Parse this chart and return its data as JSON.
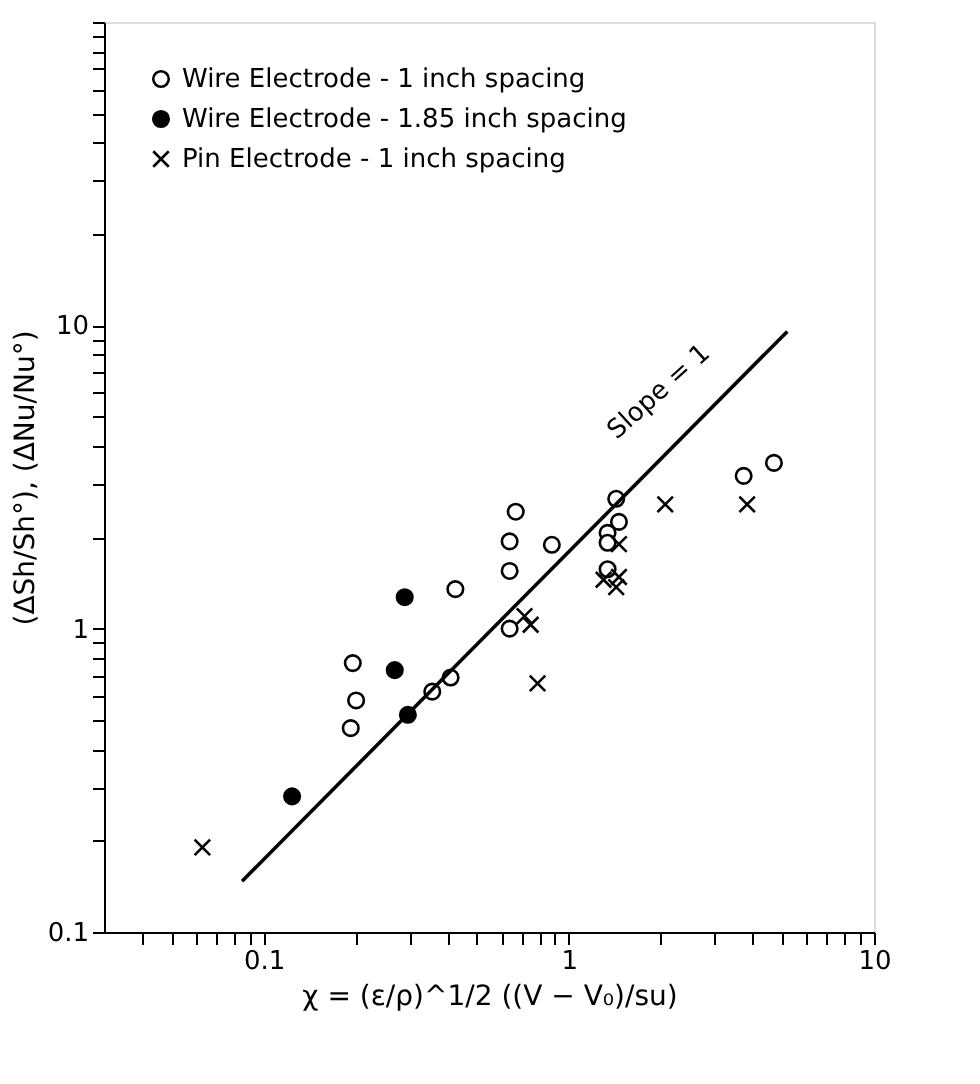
{
  "chart_data": {
    "type": "scatter",
    "xlabel": "χ = (ε/ρ)^1/2 ((V − V₀)/su)",
    "ylabel": "(ΔSh/Sh°), (ΔNu/Nu°)",
    "log": "xy",
    "grid": false,
    "legend": "top left",
    "xlim": [
      0.03,
      10
    ],
    "ylim": [
      0.1,
      100
    ],
    "xticks": [
      {
        "value": 0.04,
        "label": null
      },
      {
        "value": 0.05,
        "label": null
      },
      {
        "value": 0.06,
        "label": null
      },
      {
        "value": 0.07,
        "label": null
      },
      {
        "value": 0.08,
        "label": null
      },
      {
        "value": 0.09,
        "label": null
      },
      0.1,
      {
        "value": 0.2,
        "label": null
      },
      {
        "value": 0.3,
        "label": null
      },
      {
        "value": 0.4,
        "label": null
      },
      {
        "value": 0.5,
        "label": null
      },
      {
        "value": 0.6,
        "label": null
      },
      {
        "value": 0.7,
        "label": null
      },
      {
        "value": 0.8,
        "label": null
      },
      {
        "value": 0.9,
        "label": null
      },
      1,
      {
        "value": 2,
        "label": null
      },
      {
        "value": 3,
        "label": null
      },
      {
        "value": 4,
        "label": null
      },
      {
        "value": 5,
        "label": null
      },
      {
        "value": 6,
        "label": null
      },
      {
        "value": 7,
        "label": null
      },
      {
        "value": 8,
        "label": null
      },
      {
        "value": 9,
        "label": null
      },
      10
    ],
    "yticks": [
      0.1,
      {
        "value": 0.2,
        "label": null
      },
      {
        "value": 0.3,
        "label": null
      },
      {
        "value": 0.4,
        "label": null
      },
      {
        "value": 0.5,
        "label": null
      },
      {
        "value": 0.6,
        "label": null
      },
      {
        "value": 0.7,
        "label": null
      },
      {
        "value": 0.8,
        "label": null
      },
      {
        "value": 0.9,
        "label": null
      },
      1,
      {
        "value": 2,
        "label": null
      },
      {
        "value": 3,
        "label": null
      },
      {
        "value": 4,
        "label": null
      },
      {
        "value": 5,
        "label": null
      },
      {
        "value": 6,
        "label": null
      },
      {
        "value": 7,
        "label": null
      },
      {
        "value": 8,
        "label": null
      },
      {
        "value": 9,
        "label": null
      },
      10,
      {
        "value": 20,
        "label": null
      },
      {
        "value": 30,
        "label": null
      },
      {
        "value": 40,
        "label": null
      },
      {
        "value": 50,
        "label": null
      },
      {
        "value": 60,
        "label": null
      },
      {
        "value": 70,
        "label": null
      },
      {
        "value": 80,
        "label": null
      },
      {
        "value": 90,
        "label": null
      },
      {
        "value": 100,
        "label": null
      }
    ],
    "annotations": [
      "Slope = 1"
    ],
    "series": [
      {
        "name": "Wire Electrode - 1 inch spacing",
        "color": "#000000",
        "marker": "circle-open",
        "x": [
          0.193,
          0.196,
          0.201,
          0.357,
          0.41,
          0.425,
          0.64,
          0.64,
          0.64,
          0.67,
          0.88,
          1.43,
          1.46,
          1.34,
          1.34,
          1.34,
          3.74,
          4.7
        ],
        "values": [
          0.47,
          0.77,
          0.58,
          0.62,
          0.69,
          1.35,
          1.0,
          1.55,
          1.94,
          2.43,
          1.89,
          2.68,
          2.25,
          2.07,
          1.92,
          1.57,
          3.19,
          3.52
        ]
      },
      {
        "name": "Wire Electrode - 1.85 inch spacing",
        "color": "#000000",
        "marker": "circle",
        "x": [
          0.124,
          0.269,
          0.29,
          0.297
        ],
        "values": [
          0.28,
          0.73,
          1.27,
          0.52
        ]
      },
      {
        "name": "Pin Electrode - 1 inch spacing",
        "color": "#000000",
        "marker": "cross",
        "x": [
          0.063,
          0.716,
          0.75,
          0.79,
          1.46,
          1.3,
          1.43,
          1.46,
          2.07,
          3.84
        ],
        "values": [
          0.19,
          1.1,
          1.03,
          0.66,
          1.9,
          1.45,
          1.37,
          1.48,
          2.57,
          2.57
        ]
      },
      {
        "type": "line",
        "color": "#000000",
        "line_style": "solid",
        "x": [
          0.085,
          5.2
        ],
        "values": [
          0.147,
          9.55
        ]
      }
    ]
  }
}
